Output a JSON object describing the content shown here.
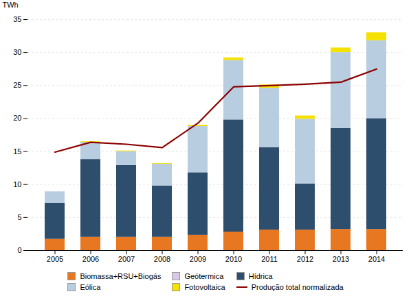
{
  "chart_data": {
    "type": "bar",
    "stacked": true,
    "y_label": "TWh",
    "categories": [
      "2005",
      "2006",
      "2007",
      "2008",
      "2009",
      "2010",
      "2011",
      "2012",
      "2013",
      "2014"
    ],
    "series": [
      {
        "name": "Biomassa+RSU+Biogás",
        "color": "#E87722",
        "values": [
          1.7,
          2.0,
          2.0,
          2.0,
          2.3,
          2.8,
          3.1,
          3.1,
          3.2,
          3.2
        ]
      },
      {
        "name": "Geótermica",
        "color": "#D9C8E8",
        "values": [
          0.0,
          0.0,
          0.0,
          0.0,
          0.0,
          0.0,
          0.0,
          0.0,
          0.0,
          0.0
        ]
      },
      {
        "name": "Hídrica",
        "color": "#2E4E6E",
        "values": [
          5.5,
          11.8,
          10.9,
          7.8,
          9.5,
          17.0,
          12.5,
          7.0,
          15.3,
          16.8
        ]
      },
      {
        "name": "Eólica",
        "color": "#B8CDE0",
        "values": [
          1.7,
          2.6,
          2.1,
          3.3,
          7.0,
          9.0,
          9.0,
          9.8,
          11.5,
          11.8
        ]
      },
      {
        "name": "Fotovoltaica",
        "color": "#F5E100",
        "values": [
          0.0,
          0.1,
          0.1,
          0.1,
          0.2,
          0.4,
          0.5,
          0.5,
          0.7,
          1.2
        ]
      },
      {
        "name": "Produção total normalizada",
        "color": "#8B0000",
        "type": "line",
        "values": [
          14.9,
          16.4,
          16.1,
          15.6,
          19.3,
          24.8,
          25.0,
          25.2,
          25.5,
          27.5
        ]
      }
    ],
    "ylim": [
      0,
      35
    ],
    "yticks": [
      0,
      5,
      10,
      15,
      20,
      25,
      30,
      35
    ],
    "grid": true,
    "legend": "bottom"
  }
}
